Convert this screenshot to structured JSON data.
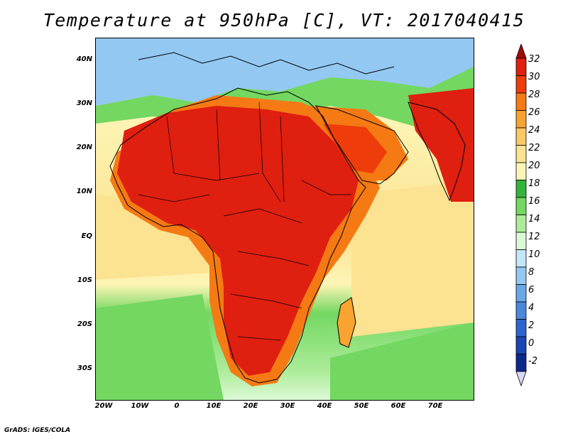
{
  "title": "Temperature at 950hPa [C], VT: 2017040415",
  "footer": "GrADS: IGES/COLA",
  "map": {
    "lat_labels": [
      "40N",
      "30N",
      "20N",
      "10N",
      "EQ",
      "10S",
      "20S",
      "30S"
    ],
    "lon_labels": [
      "20W",
      "10W",
      "0",
      "10E",
      "20E",
      "30E",
      "40E",
      "50E",
      "60E",
      "70E"
    ],
    "lat_range": [
      -37,
      45
    ],
    "lon_range": [
      -22,
      80
    ]
  },
  "colorbar": {
    "labels": [
      "32",
      "30",
      "28",
      "26",
      "24",
      "22",
      "20",
      "18",
      "16",
      "14",
      "12",
      "10",
      "8",
      "6",
      "4",
      "2",
      "0",
      "-2"
    ],
    "colors": [
      "#df1f10",
      "#ee3c0b",
      "#f57a14",
      "#f9a331",
      "#fbc964",
      "#fce392",
      "#fdf5b6",
      "#34b33d",
      "#73d761",
      "#acec99",
      "#dcf9d6",
      "#c4e6f9",
      "#93c8f2",
      "#6aa7e7",
      "#4b87db",
      "#2d64cf",
      "#1946b2",
      "#0d288c",
      "#080d64"
    ],
    "top_arrow_color": "#a20a0a",
    "bottom_arrow_color": "#d9d6f7"
  }
}
